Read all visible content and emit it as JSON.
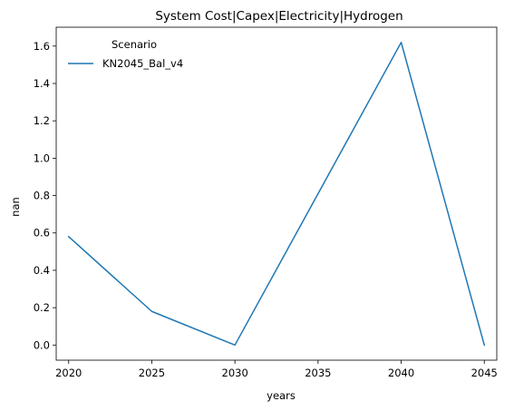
{
  "chart_data": {
    "type": "line",
    "title": "System Cost|Capex|Electricity|Hydrogen",
    "xlabel": "years",
    "ylabel": "nan",
    "x": [
      2020,
      2025,
      2030,
      2040,
      2045
    ],
    "series": [
      {
        "name": "KN2045_Bal_v4",
        "color": "#1f77b4",
        "values": [
          0.58,
          0.18,
          0.0,
          1.62,
          0.0
        ]
      }
    ],
    "xticks": [
      "2020",
      "2025",
      "2030",
      "2035",
      "2040",
      "2045"
    ],
    "yticks": [
      "0.0",
      "0.2",
      "0.4",
      "0.6",
      "0.8",
      "1.0",
      "1.2",
      "1.4",
      "1.6"
    ],
    "xlim": [
      2019.25,
      2045.75
    ],
    "ylim": [
      -0.081,
      1.701
    ],
    "grid": false,
    "legend": {
      "title": "Scenario",
      "placement": "upper-left"
    }
  }
}
